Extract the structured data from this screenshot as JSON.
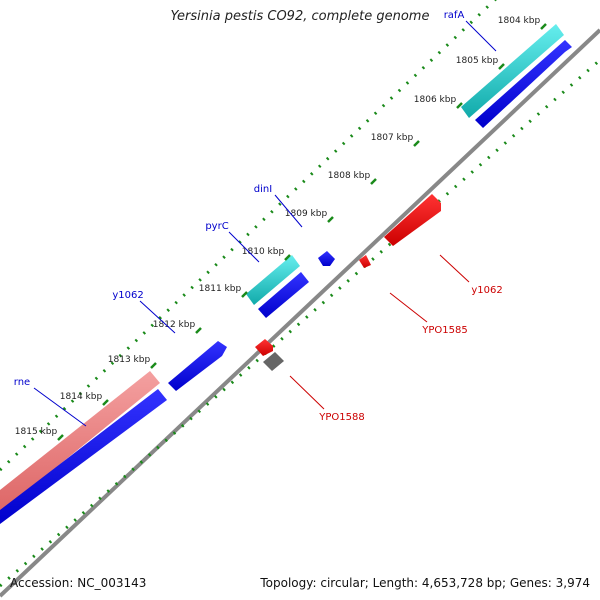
{
  "title": "Yersinia pestis CO92, complete genome",
  "accession_text": "Accession: NC_003143",
  "summary_text": "Topology: circular; Length: 4,653,728 bp; Genes: 3,974",
  "colors": {
    "backbone": "#888888",
    "tick": "#1a8a1a",
    "forward_gene": "#0000ee",
    "reverse_gene": "#ee0000",
    "cyan_feature": "#22cccc",
    "salmon_feature": "#ee8888",
    "gray_feature": "#666666",
    "forward_label": "#0000cc",
    "reverse_label": "#cc0000"
  },
  "kbp_ticks": [
    "1804 kbp",
    "1805 kbp",
    "1806 kbp",
    "1807 kbp",
    "1808 kbp",
    "1809 kbp",
    "1810 kbp",
    "1811 kbp",
    "1812 kbp",
    "1813 kbp",
    "1814 kbp",
    "1815 kbp"
  ],
  "forward_labels": [
    "rafA",
    "dinI",
    "pyrC",
    "y1062",
    "rne"
  ],
  "reverse_labels": [
    "y1062",
    "YPO1585",
    "YPO1588"
  ]
}
